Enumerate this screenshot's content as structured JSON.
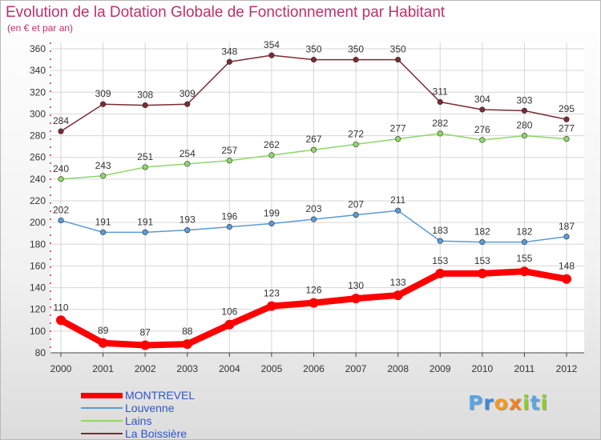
{
  "chart_data": {
    "type": "line",
    "title": "Evolution de la Dotation Globale de Fonctionnement par Habitant",
    "subtitle": "(en € et par an)",
    "categories": [
      "2000",
      "2001",
      "2002",
      "2003",
      "2004",
      "2005",
      "2006",
      "2007",
      "2008",
      "2009",
      "2010",
      "2011",
      "2012"
    ],
    "ylim": [
      80,
      360
    ],
    "yticks": [
      80,
      100,
      120,
      140,
      160,
      180,
      200,
      220,
      240,
      260,
      280,
      300,
      320,
      340,
      360
    ],
    "grid": true,
    "legend_position": "bottom-left",
    "series": [
      {
        "name": "MONTREVEL",
        "color": "#ff0000",
        "emphasis": true,
        "values": [
          110,
          89,
          87,
          88,
          106,
          123,
          126,
          130,
          133,
          153,
          153,
          155,
          148
        ]
      },
      {
        "name": "Louvenne",
        "color": "#5b9bd5",
        "emphasis": false,
        "values": [
          202,
          191,
          191,
          193,
          196,
          199,
          203,
          207,
          211,
          183,
          182,
          182,
          187
        ]
      },
      {
        "name": "Lains",
        "color": "#8fd66a",
        "emphasis": false,
        "values": [
          240,
          243,
          251,
          254,
          257,
          262,
          267,
          272,
          277,
          282,
          276,
          280,
          277
        ]
      },
      {
        "name": "La Boissière",
        "color": "#7b2b33",
        "emphasis": false,
        "values": [
          284,
          309,
          308,
          309,
          348,
          354,
          350,
          350,
          350,
          311,
          304,
          303,
          295
        ]
      }
    ]
  },
  "brand": {
    "letters": [
      "P",
      "r",
      "o",
      "x",
      "i",
      "t",
      "i"
    ],
    "colors": [
      "#5aa5e6",
      "#3c8ad8",
      "#f39a1e",
      "#f08020",
      "#8fce2a",
      "#5aa5e6",
      "#8fce2a"
    ]
  }
}
